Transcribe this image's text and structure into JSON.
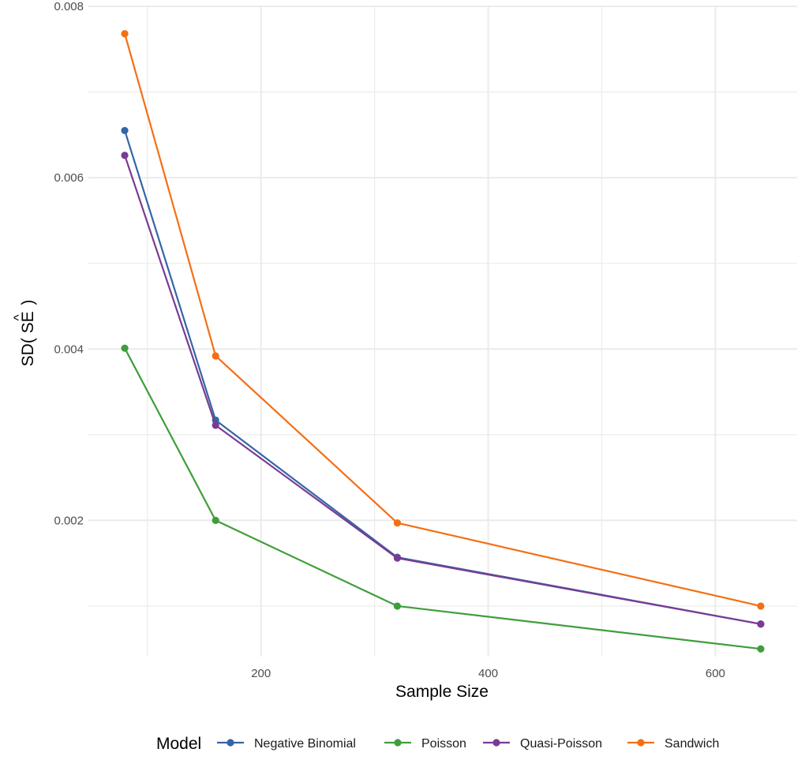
{
  "chart_data": {
    "type": "line",
    "x": [
      80,
      160,
      320,
      640
    ],
    "series": [
      {
        "name": "Negative Binomial",
        "color": "#3366a6",
        "values": [
          0.00655,
          0.00317,
          0.00157,
          0.00079
        ]
      },
      {
        "name": "Poisson",
        "color": "#3e9e3a",
        "values": [
          0.00401,
          0.002,
          0.001,
          0.0005
        ]
      },
      {
        "name": "Quasi-Poisson",
        "color": "#7a3b93",
        "values": [
          0.00626,
          0.00311,
          0.00156,
          0.00079
        ]
      },
      {
        "name": "Sandwich",
        "color": "#f46f14",
        "values": [
          0.00768,
          0.00392,
          0.00197,
          0.001
        ]
      }
    ],
    "xlabel": "Sample Size",
    "ylabel_main": "SD( SE",
    "ylabel_hat": "^",
    "ylabel_close": ")",
    "xlim": [
      48,
      672
    ],
    "ylim": [
      0.00041,
      0.008
    ],
    "x_ticks": [
      200,
      400,
      600
    ],
    "x_tick_labels": [
      "200",
      "400",
      "600"
    ],
    "x_minor_ticks": [
      100,
      300,
      500
    ],
    "y_ticks": [
      0.002,
      0.004,
      0.006,
      0.008
    ],
    "y_tick_labels": [
      "0.002",
      "0.004",
      "0.006",
      "0.008"
    ],
    "y_minor_ticks": [
      0.001,
      0.003,
      0.005,
      0.007
    ],
    "grid": true,
    "legend_title": "Model",
    "legend_position": "bottom"
  }
}
